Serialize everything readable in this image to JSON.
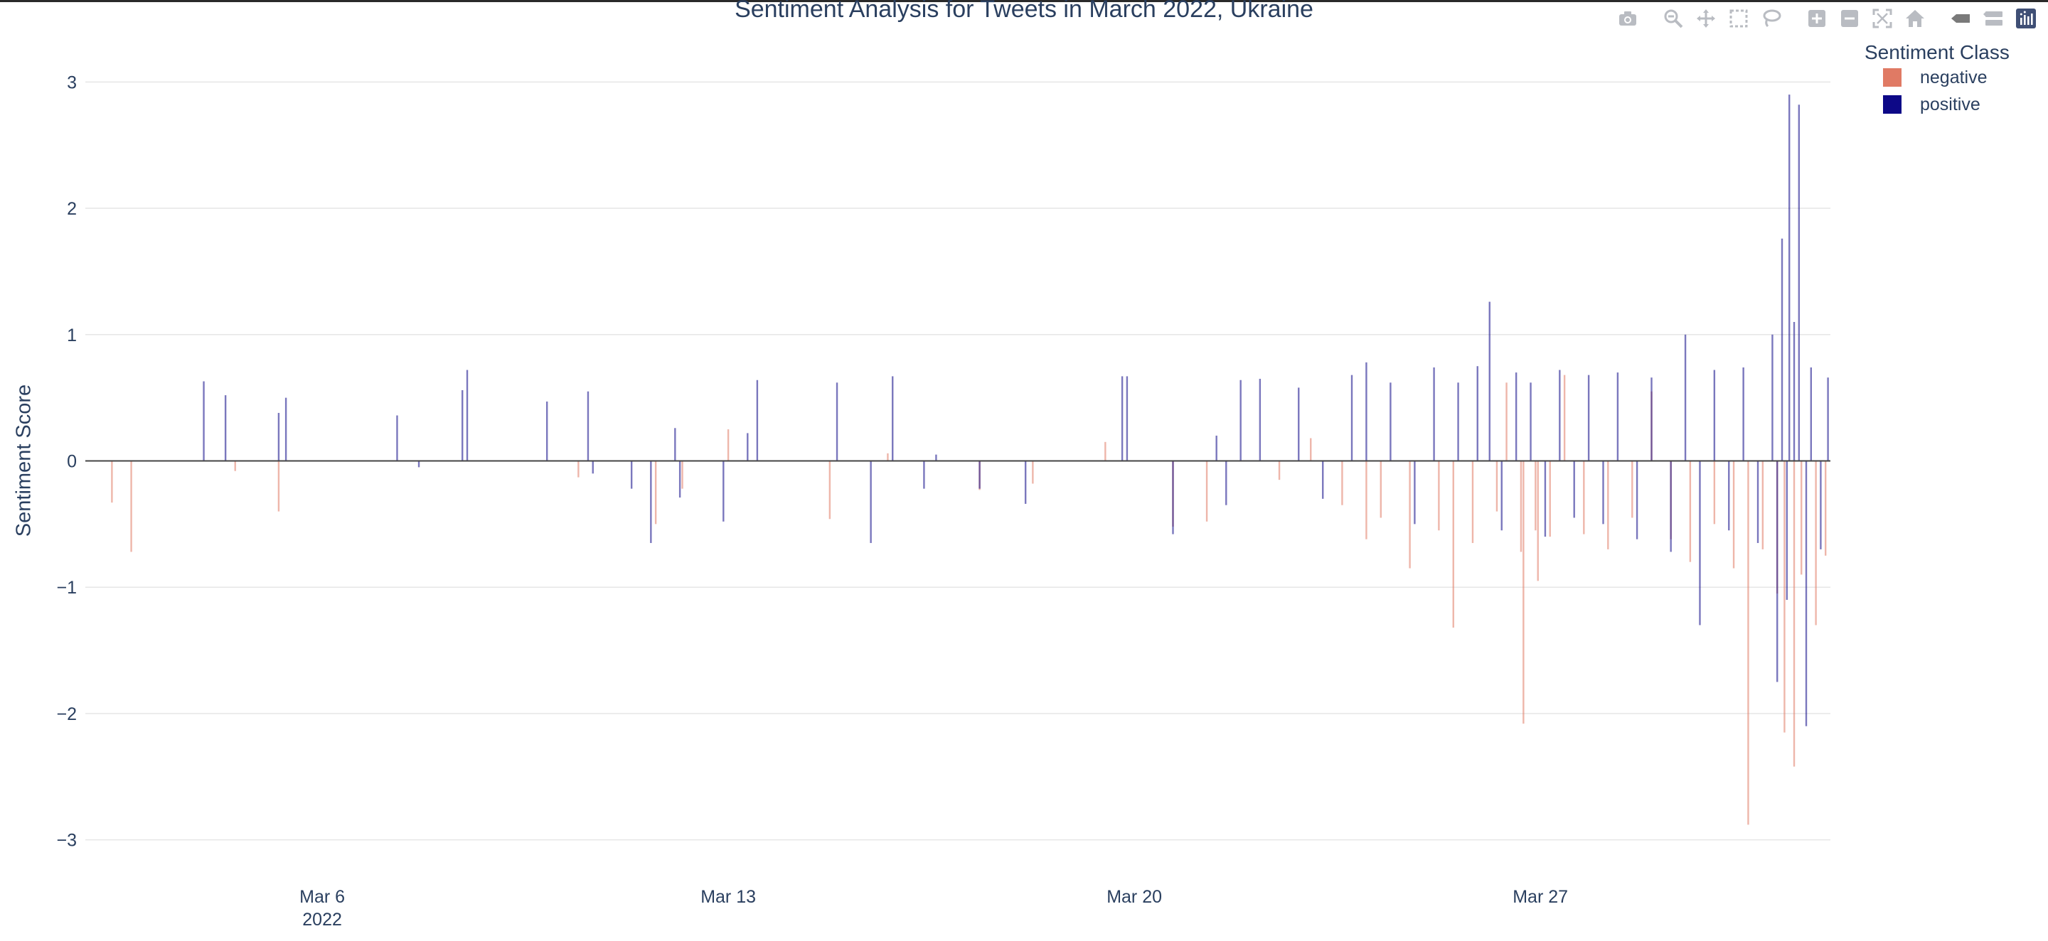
{
  "toolbar": {
    "buttons": [
      {
        "name": "camera-icon",
        "label": "Download plot as a png"
      },
      {
        "name": "zoom-icon",
        "label": "Zoom"
      },
      {
        "name": "pan-icon",
        "label": "Pan"
      },
      {
        "name": "box-select-icon",
        "label": "Box Select"
      },
      {
        "name": "lasso-select-icon",
        "label": "Lasso Select"
      },
      {
        "name": "zoom-in-icon",
        "label": "Zoom in"
      },
      {
        "name": "zoom-out-icon",
        "label": "Zoom out"
      },
      {
        "name": "autoscale-icon",
        "label": "Autoscale"
      },
      {
        "name": "reset-axes-icon",
        "label": "Reset axes"
      },
      {
        "name": "spike-lines-icon",
        "label": "Toggle Spike Lines"
      },
      {
        "name": "hover-closest-icon",
        "label": "Show closest data on hover"
      },
      {
        "name": "plotly-logo-icon",
        "label": "Produced with Plotly"
      }
    ]
  },
  "colors": {
    "negative": "#e07a64",
    "positive": "#0d0887",
    "text": "#2a3f5f",
    "grid": "#e6e6e6"
  },
  "chart_data": {
    "type": "bar",
    "title": "Sentiment Analysis for Tweets in March 2022, Ukraine",
    "xlabel": "",
    "ylabel": "Sentiment Score",
    "ylim": [
      -3.3,
      3.3
    ],
    "yticks": [
      -3,
      -2,
      -1,
      0,
      1,
      2,
      3
    ],
    "ytick_labels": [
      "−3",
      "−2",
      "−1",
      "0",
      "1",
      "2",
      "3"
    ],
    "xlim": [
      "2022-03-01T22:00",
      "2022-04-01T00:00"
    ],
    "xticks": [
      "2022-03-06",
      "2022-03-13",
      "2022-03-20",
      "2022-03-27"
    ],
    "xtick_labels": [
      "Mar 6",
      "Mar 13",
      "Mar 20",
      "Mar 27"
    ],
    "xtick_year": "2022",
    "grid": true,
    "legend": {
      "title": "Sentiment Class",
      "position": "top-right"
    },
    "series": [
      {
        "name": "negative",
        "color": "#e07a64",
        "points": [
          [
            "2022-03-02T09:00",
            -0.33
          ],
          [
            "2022-03-02T17:00",
            -0.72
          ],
          [
            "2022-03-04T12:00",
            -0.08
          ],
          [
            "2022-03-05T06:00",
            -0.4
          ],
          [
            "2022-03-10T10:00",
            -0.13
          ],
          [
            "2022-03-11T18:00",
            -0.5
          ],
          [
            "2022-03-12T05:00",
            -0.22
          ],
          [
            "2022-03-13T00:00",
            0.25
          ],
          [
            "2022-03-14T18:00",
            -0.46
          ],
          [
            "2022-03-15T18:00",
            0.06
          ],
          [
            "2022-03-17T08:00",
            -0.23
          ],
          [
            "2022-03-18T06:00",
            -0.18
          ],
          [
            "2022-03-19T12:00",
            0.15
          ],
          [
            "2022-03-20T16:00",
            -0.52
          ],
          [
            "2022-03-21T06:00",
            -0.48
          ],
          [
            "2022-03-22T12:00",
            -0.15
          ],
          [
            "2022-03-23T01:00",
            0.18
          ],
          [
            "2022-03-23T14:00",
            -0.35
          ],
          [
            "2022-03-24T00:00",
            -0.62
          ],
          [
            "2022-03-24T06:00",
            -0.45
          ],
          [
            "2022-03-24T18:00",
            -0.85
          ],
          [
            "2022-03-25T06:00",
            -0.55
          ],
          [
            "2022-03-25T12:00",
            -1.32
          ],
          [
            "2022-03-25T20:00",
            -0.65
          ],
          [
            "2022-03-26T06:00",
            -0.4
          ],
          [
            "2022-03-26T10:00",
            0.62
          ],
          [
            "2022-03-26T16:00",
            -0.72
          ],
          [
            "2022-03-26T22:00",
            -0.55
          ],
          [
            "2022-03-27T04:00",
            -0.6
          ],
          [
            "2022-03-26T17:00",
            -2.08
          ],
          [
            "2022-03-26T23:00",
            -0.95
          ],
          [
            "2022-03-27T10:00",
            0.68
          ],
          [
            "2022-03-27T18:00",
            -0.58
          ],
          [
            "2022-03-28T04:00",
            -0.7
          ],
          [
            "2022-03-28T14:00",
            -0.45
          ],
          [
            "2022-03-28T22:00",
            0.55
          ],
          [
            "2022-03-29T06:00",
            -0.62
          ],
          [
            "2022-03-29T14:00",
            -0.8
          ],
          [
            "2022-03-30T00:00",
            -0.5
          ],
          [
            "2022-03-30T08:00",
            -0.85
          ],
          [
            "2022-03-30T14:00",
            -2.88
          ],
          [
            "2022-03-30T20:00",
            -0.7
          ],
          [
            "2022-03-31T02:00",
            -1.05
          ],
          [
            "2022-03-31T05:00",
            -2.15
          ],
          [
            "2022-03-31T09:00",
            -2.42
          ],
          [
            "2022-03-31T12:00",
            -0.9
          ],
          [
            "2022-03-31T18:00",
            -1.3
          ],
          [
            "2022-03-31T22:00",
            -0.75
          ]
        ]
      },
      {
        "name": "positive",
        "color": "#0d0887",
        "points": [
          [
            "2022-03-03T23:00",
            0.63
          ],
          [
            "2022-03-04T08:00",
            0.52
          ],
          [
            "2022-03-05T06:00",
            0.38
          ],
          [
            "2022-03-05T09:00",
            0.5
          ],
          [
            "2022-03-06T02:00",
            0.0
          ],
          [
            "2022-03-07T07:00",
            0.36
          ],
          [
            "2022-03-07T16:00",
            -0.05
          ],
          [
            "2022-03-08T10:00",
            0.56
          ],
          [
            "2022-03-08T12:00",
            0.72
          ],
          [
            "2022-03-09T21:00",
            0.47
          ],
          [
            "2022-03-10T14:00",
            0.55
          ],
          [
            "2022-03-10T16:00",
            -0.1
          ],
          [
            "2022-03-11T08:00",
            -0.22
          ],
          [
            "2022-03-11T16:00",
            -0.65
          ],
          [
            "2022-03-12T02:00",
            0.26
          ],
          [
            "2022-03-12T04:00",
            -0.29
          ],
          [
            "2022-03-12T22:00",
            -0.48
          ],
          [
            "2022-03-13T08:00",
            0.22
          ],
          [
            "2022-03-13T12:00",
            0.64
          ],
          [
            "2022-03-14T21:00",
            0.62
          ],
          [
            "2022-03-15T11:00",
            -0.65
          ],
          [
            "2022-03-15T20:00",
            0.67
          ],
          [
            "2022-03-16T09:00",
            -0.22
          ],
          [
            "2022-03-16T14:00",
            0.05
          ],
          [
            "2022-03-17T08:00",
            -0.22
          ],
          [
            "2022-03-18T03:00",
            -0.34
          ],
          [
            "2022-03-19T19:00",
            0.67
          ],
          [
            "2022-03-19T21:00",
            0.67
          ],
          [
            "2022-03-20T16:00",
            -0.58
          ],
          [
            "2022-03-21T10:00",
            0.2
          ],
          [
            "2022-03-21T14:00",
            -0.35
          ],
          [
            "2022-03-21T20:00",
            0.64
          ],
          [
            "2022-03-22T04:00",
            0.65
          ],
          [
            "2022-03-22T20:00",
            0.58
          ],
          [
            "2022-03-23T06:00",
            -0.3
          ],
          [
            "2022-03-23T18:00",
            0.68
          ],
          [
            "2022-03-24T00:00",
            0.78
          ],
          [
            "2022-03-24T10:00",
            0.62
          ],
          [
            "2022-03-24T20:00",
            -0.5
          ],
          [
            "2022-03-25T04:00",
            0.74
          ],
          [
            "2022-03-25T14:00",
            0.62
          ],
          [
            "2022-03-25T22:00",
            0.75
          ],
          [
            "2022-03-26T03:00",
            1.26
          ],
          [
            "2022-03-26T08:00",
            -0.55
          ],
          [
            "2022-03-26T14:00",
            0.7
          ],
          [
            "2022-03-26T20:00",
            0.62
          ],
          [
            "2022-03-27T02:00",
            -0.6
          ],
          [
            "2022-03-27T08:00",
            0.72
          ],
          [
            "2022-03-27T14:00",
            -0.45
          ],
          [
            "2022-03-27T20:00",
            0.68
          ],
          [
            "2022-03-28T02:00",
            -0.5
          ],
          [
            "2022-03-28T08:00",
            0.7
          ],
          [
            "2022-03-28T16:00",
            -0.62
          ],
          [
            "2022-03-28T22:00",
            0.66
          ],
          [
            "2022-03-29T06:00",
            -0.72
          ],
          [
            "2022-03-29T12:00",
            1.0
          ],
          [
            "2022-03-29T18:00",
            -1.3
          ],
          [
            "2022-03-30T00:00",
            0.72
          ],
          [
            "2022-03-30T06:00",
            -0.55
          ],
          [
            "2022-03-30T12:00",
            0.74
          ],
          [
            "2022-03-30T18:00",
            -0.65
          ],
          [
            "2022-03-31T00:00",
            1.0
          ],
          [
            "2022-03-31T02:00",
            -1.75
          ],
          [
            "2022-03-31T04:00",
            1.76
          ],
          [
            "2022-03-31T06:00",
            -1.1
          ],
          [
            "2022-03-31T07:00",
            2.9
          ],
          [
            "2022-03-31T09:00",
            1.1
          ],
          [
            "2022-03-31T11:00",
            2.82
          ],
          [
            "2022-03-31T14:00",
            -2.1
          ],
          [
            "2022-03-31T16:00",
            0.74
          ],
          [
            "2022-03-31T20:00",
            -0.7
          ],
          [
            "2022-03-31T23:00",
            0.66
          ]
        ]
      }
    ]
  }
}
